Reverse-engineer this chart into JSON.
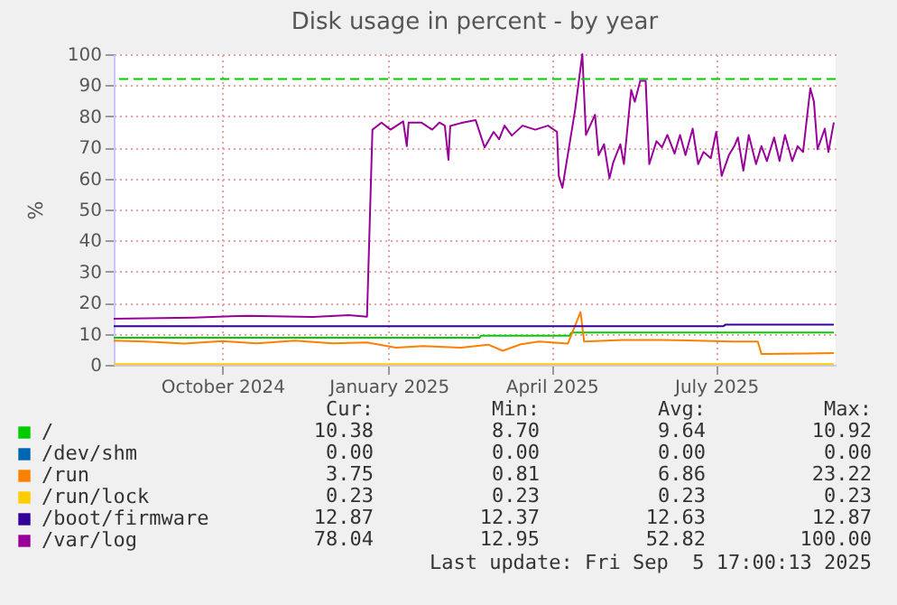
{
  "chart_data": {
    "type": "line",
    "title": "Disk usage in percent - by year",
    "ylabel": "%",
    "xlim": [
      "2024-08-02",
      "2025-09-05"
    ],
    "xticks": [
      {
        "value": "2024-10-01",
        "label": "October 2024"
      },
      {
        "value": "2025-01-01",
        "label": "January 2025"
      },
      {
        "value": "2025-04-01",
        "label": "April 2025"
      },
      {
        "value": "2025-07-01",
        "label": "July 2025"
      }
    ],
    "ylim": [
      0,
      100
    ],
    "yticks": [
      0,
      10,
      20,
      30,
      40,
      50,
      60,
      70,
      80,
      90,
      100
    ],
    "grid": true,
    "legend": "bottom",
    "marker": "none",
    "line_style": "solid",
    "ref_lines": [
      {
        "axis": "y",
        "value": 92,
        "color": "#00cc00",
        "line_style": "dashed"
      }
    ],
    "series": [
      {
        "name": "/",
        "color": "#00cc00",
        "x": [
          "2024-08-02",
          "2025-02-20",
          "2025-02-21",
          "2025-04-11",
          "2025-04-12",
          "2025-09-04"
        ],
        "values": [
          8.7,
          8.7,
          9.4,
          9.4,
          10.4,
          10.4
        ]
      },
      {
        "name": "/dev/shm",
        "color": "#0066b3"
      },
      {
        "name": "/run",
        "color": "#ff8000",
        "x": [
          "2024-08-02",
          "2024-08-20",
          "2024-09-10",
          "2024-10-01",
          "2024-10-20",
          "2024-11-10",
          "2024-12-01",
          "2024-12-20",
          "2025-01-05",
          "2025-01-20",
          "2025-02-10",
          "2025-02-25",
          "2025-03-05",
          "2025-03-15",
          "2025-03-25",
          "2025-04-10",
          "2025-04-17",
          "2025-04-19",
          "2025-05-10",
          "2025-06-01",
          "2025-06-20",
          "2025-07-10",
          "2025-07-24",
          "2025-07-26",
          "2025-08-20",
          "2025-09-04"
        ],
        "values": [
          7.8,
          7.5,
          6.8,
          7.6,
          6.9,
          7.8,
          6.9,
          7.2,
          5.5,
          6,
          5.5,
          6.5,
          4.5,
          6.6,
          7.5,
          6.8,
          17,
          7.5,
          8,
          8,
          7.8,
          7.5,
          7.5,
          3.5,
          3.6,
          3.8
        ]
      },
      {
        "name": "/run/lock",
        "color": "#ffcc00",
        "x": [
          "2024-08-02",
          "2025-09-04"
        ],
        "values": [
          0.2,
          0.2
        ]
      },
      {
        "name": "/boot/firmware",
        "color": "#330099",
        "x": [
          "2024-08-02",
          "2025-07-05",
          "2025-07-06",
          "2025-09-04"
        ],
        "values": [
          12.4,
          12.4,
          12.9,
          12.9
        ]
      },
      {
        "name": "/var/log",
        "color": "#990099",
        "x": [
          "2024-08-02",
          "2024-09-15",
          "2024-10-15",
          "2024-11-20",
          "2024-12-10",
          "2024-12-20",
          "2024-12-23",
          "2024-12-28",
          "2025-01-02",
          "2025-01-09",
          "2025-01-11",
          "2025-01-12",
          "2025-01-19",
          "2025-01-25",
          "2025-01-29",
          "2025-02-01",
          "2025-02-03",
          "2025-02-04",
          "2025-02-11",
          "2025-02-18",
          "2025-02-23",
          "2025-02-28",
          "2025-03-03",
          "2025-03-06",
          "2025-03-10",
          "2025-03-16",
          "2025-03-23",
          "2025-03-30",
          "2025-04-04",
          "2025-04-05",
          "2025-04-07",
          "2025-04-14",
          "2025-04-18",
          "2025-04-20",
          "2025-04-25",
          "2025-04-27",
          "2025-04-30",
          "2025-05-03",
          "2025-05-05",
          "2025-05-09",
          "2025-05-11",
          "2025-05-15",
          "2025-05-17",
          "2025-05-20",
          "2025-05-23",
          "2025-05-25",
          "2025-05-29",
          "2025-06-01",
          "2025-06-04",
          "2025-06-08",
          "2025-06-11",
          "2025-06-14",
          "2025-06-18",
          "2025-06-21",
          "2025-06-24",
          "2025-06-28",
          "2025-07-01",
          "2025-07-04",
          "2025-07-08",
          "2025-07-11",
          "2025-07-13",
          "2025-07-16",
          "2025-07-19",
          "2025-07-23",
          "2025-07-26",
          "2025-07-29",
          "2025-08-02",
          "2025-08-05",
          "2025-08-08",
          "2025-08-12",
          "2025-08-15",
          "2025-08-18",
          "2025-08-22",
          "2025-08-24",
          "2025-08-26",
          "2025-08-30",
          "2025-09-01",
          "2025-09-04"
        ],
        "values": [
          14.8,
          15.2,
          15.8,
          15.4,
          16,
          15.5,
          75.7,
          78,
          75.7,
          78.4,
          70.4,
          78,
          78,
          75.7,
          78,
          77,
          66,
          76.9,
          78,
          78.8,
          70,
          75,
          72.6,
          77,
          73.8,
          77,
          75.7,
          77,
          75,
          60.8,
          57,
          82,
          100,
          74,
          80.5,
          67.5,
          71,
          60,
          65,
          71,
          64.6,
          88.5,
          84.7,
          91.4,
          91.4,
          64.6,
          72,
          70,
          74,
          68,
          74,
          67.5,
          76,
          64.6,
          68.5,
          66.5,
          75,
          60.8,
          67.5,
          70.4,
          73.2,
          62.5,
          74,
          64.6,
          70.4,
          65.6,
          73.2,
          65.6,
          74,
          65.6,
          70.4,
          68.5,
          89,
          84.7,
          69.4,
          76,
          68.5,
          78
        ]
      }
    ],
    "annotations": [
      "Cur:",
      "Min:",
      "Avg:",
      "Max:",
      "10.38",
      "8.70",
      "9.64",
      "10.92",
      "0.00",
      "0.00",
      "0.00",
      "0.00",
      "3.75",
      "0.81",
      "6.86",
      "23.22",
      "0.23",
      "0.23",
      "0.23",
      "0.23",
      "12.87",
      "12.37",
      "12.63",
      "12.87",
      "78.04",
      "12.95",
      "52.82",
      "100.00",
      "Last update: Fri Sep  5 17:00:13 2025"
    ]
  }
}
